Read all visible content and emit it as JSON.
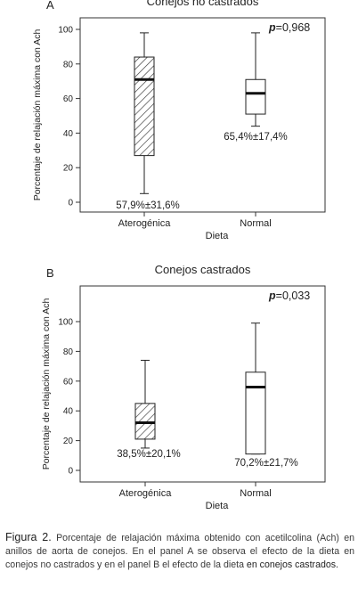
{
  "chart_data": [
    {
      "type": "boxplot",
      "panel_label": "A",
      "title": "Conejos no castrados",
      "xlabel": "Dieta",
      "ylabel": "Porcentaje de relajación máxima con Ach",
      "ylim": [
        0,
        100
      ],
      "yticks": [
        "0",
        "20",
        "40",
        "60",
        "80",
        "100"
      ],
      "categories": [
        "Aterogénica",
        "Normal"
      ],
      "boxes": [
        {
          "category": "Aterogénica",
          "min": 5,
          "q1": 27,
          "median": 71,
          "q3": 84,
          "max": 98,
          "pattern": "hatched",
          "annotation": "57,9%±31,6%"
        },
        {
          "category": "Normal",
          "min": 44,
          "q1": 51,
          "median": 63,
          "q3": 71,
          "max": 98,
          "pattern": "none",
          "annotation": "65,4%±17,4%"
        }
      ],
      "pvalue_label": "p",
      "pvalue_text": "=0,968"
    },
    {
      "type": "boxplot",
      "panel_label": "B",
      "title": "Conejos castrados",
      "xlabel": "Dieta",
      "ylabel": "Porcentaje de relajación máxima con Ach",
      "ylim": [
        0,
        100
      ],
      "yticks": [
        "0",
        "20",
        "40",
        "60",
        "80",
        "100"
      ],
      "categories": [
        "Aterogénica",
        "Normal"
      ],
      "boxes": [
        {
          "category": "Aterogénica",
          "min": 15,
          "q1": 21,
          "median": 32,
          "q3": 45,
          "max": 74,
          "pattern": "hatched",
          "annotation": "38,5%±20,1%"
        },
        {
          "category": "Normal",
          "min": 11,
          "q1": 11,
          "median": 56,
          "q3": 66,
          "max": 99,
          "pattern": "none",
          "annotation": "70,2%±21,7%"
        }
      ],
      "pvalue_label": "p",
      "pvalue_text": "=0,033"
    }
  ],
  "caption": {
    "figure_label": "Figura 2.",
    "text": "Porcentaje de relajación máxima obtenido con acetilcolina (Ach) en anillos de aorta de conejos. En el panel A se observa el efecto de la dieta en conejos no castrados y en el panel B el efecto de la dieta",
    "last_line": "en conejos castrados."
  }
}
